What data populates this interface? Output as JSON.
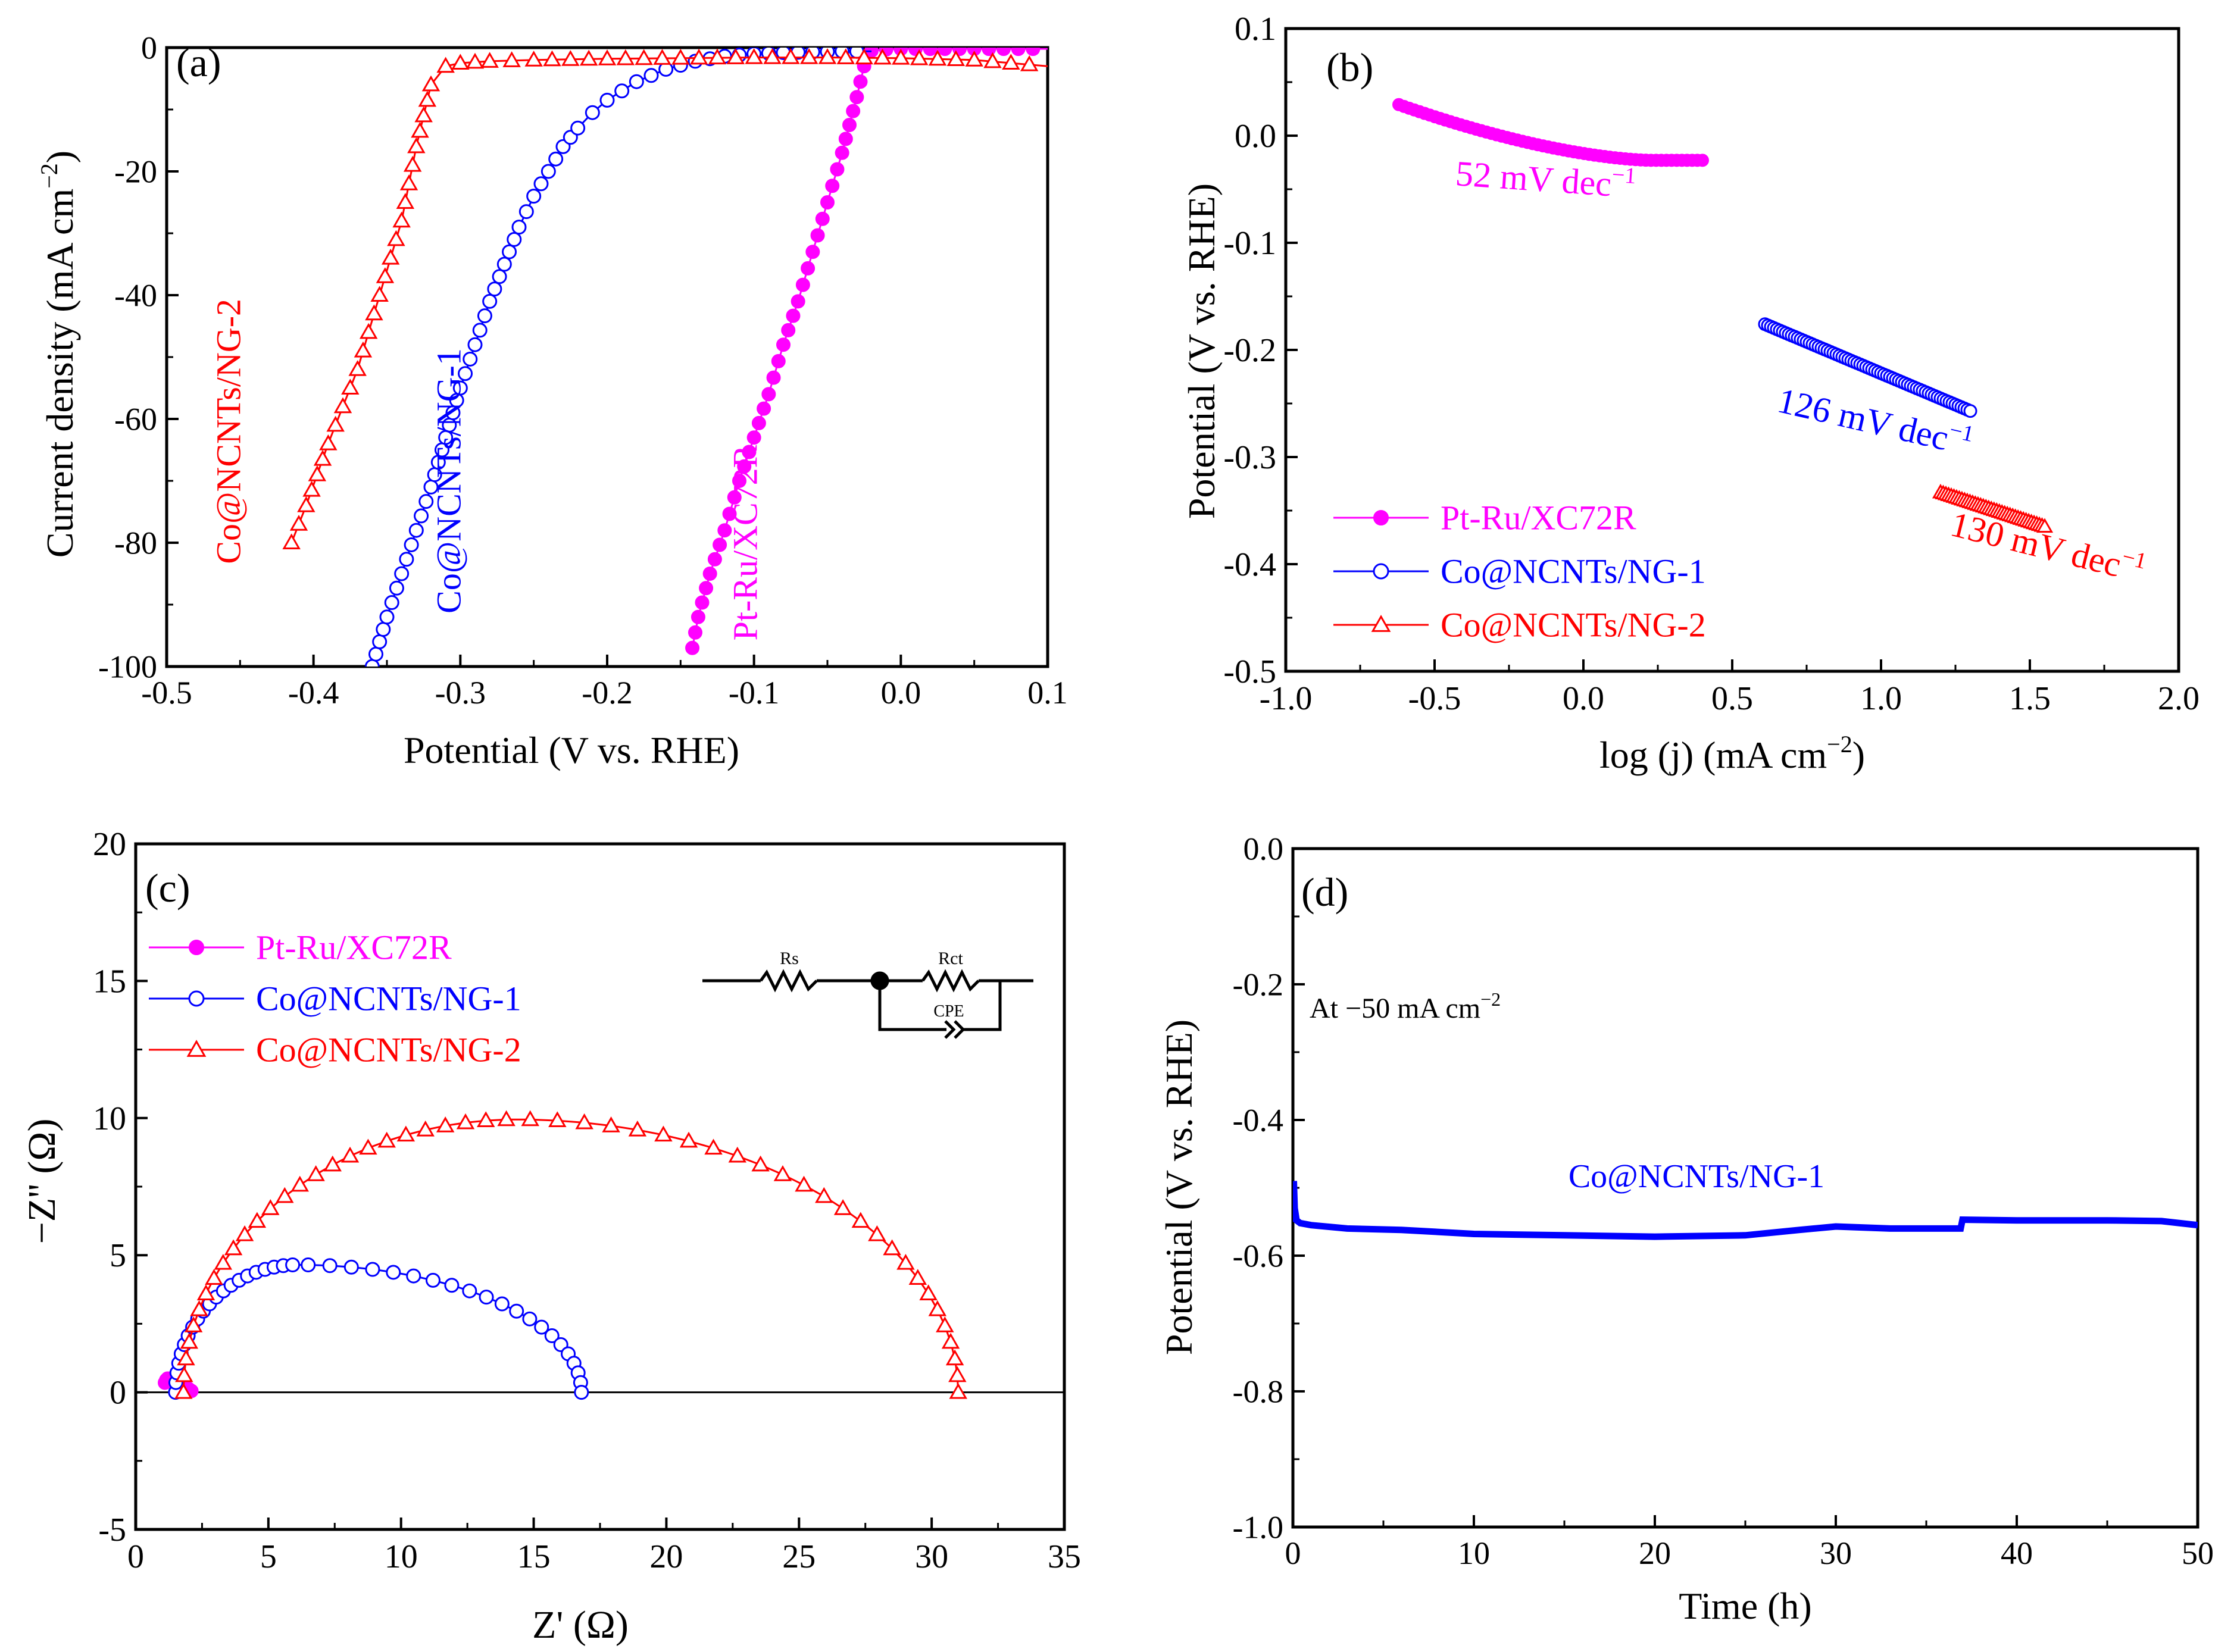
{
  "colors": {
    "axis": "#000000",
    "pt_ru": "#ff00ff",
    "ng1": "#0000ff",
    "ng2": "#ff0000",
    "zero_line": "#000000"
  },
  "chart_data": [
    {
      "panel": "(a)",
      "type": "line",
      "xlabel": "Potential  (V vs. RHE)",
      "ylabel": "Current density (mA cm",
      "ylabel_sup": "−2",
      "ylabel_end": ")",
      "xlim": [
        -0.5,
        0.1
      ],
      "ylim": [
        -100,
        0
      ],
      "xticks": [
        -0.5,
        -0.4,
        -0.3,
        -0.2,
        -0.1,
        0.0,
        0.1
      ],
      "xtick_labels": [
        "-0.5",
        "-0.4",
        "-0.3",
        "-0.2",
        "-0.1",
        "0.0",
        "0.1"
      ],
      "yticks": [
        0,
        -20,
        -40,
        -60,
        -80,
        -100
      ],
      "ytick_labels": [
        "0",
        "-20",
        "-40",
        "-60",
        "-80",
        "-100"
      ],
      "legend": "none",
      "series": [
        {
          "key": "ptru",
          "color": "#ff00ff",
          "marker": "filled-circle",
          "x": [
            -0.142,
            -0.138,
            -0.13,
            -0.12,
            -0.11,
            -0.1,
            -0.09,
            -0.08,
            -0.07,
            -0.06,
            -0.05,
            -0.04,
            -0.03,
            -0.025,
            -0.02,
            -0.01,
            0.0,
            0.02,
            0.05,
            0.08,
            0.1
          ],
          "y": [
            -97,
            -92,
            -85,
            -78,
            -70,
            -63,
            -56,
            -48,
            -41,
            -33,
            -25,
            -17,
            -8,
            -3,
            -0.5,
            -0.3,
            -0.2,
            -0.2,
            -0.2,
            -0.2,
            -0.2
          ]
        },
        {
          "key": "ng1",
          "color": "#0000ff",
          "marker": "open-circle",
          "x": [
            -0.36,
            -0.355,
            -0.35,
            -0.34,
            -0.33,
            -0.32,
            -0.31,
            -0.3,
            -0.29,
            -0.28,
            -0.27,
            -0.26,
            -0.25,
            -0.24,
            -0.23,
            -0.22,
            -0.21,
            -0.2,
            -0.18,
            -0.16,
            -0.14,
            -0.12,
            -0.1,
            -0.08,
            -0.06,
            -0.04,
            -0.02
          ],
          "y": [
            -100,
            -96,
            -92,
            -85,
            -78,
            -71,
            -63,
            -55,
            -48,
            -41,
            -35,
            -29,
            -24,
            -20,
            -16,
            -13,
            -10.5,
            -8.5,
            -5.5,
            -3.5,
            -2.2,
            -1.4,
            -1,
            -0.8,
            -0.7,
            -0.6,
            -0.6
          ]
        },
        {
          "key": "ng2",
          "color": "#ff0000",
          "marker": "open-triangle",
          "x": [
            -0.415,
            -0.405,
            -0.39,
            -0.37,
            -0.355,
            -0.34,
            -0.33,
            -0.32,
            -0.31,
            -0.3,
            -0.28,
            -0.25,
            -0.2,
            -0.15,
            -0.1,
            -0.05,
            0.0,
            0.05,
            0.1
          ],
          "y": [
            -80,
            -74,
            -64,
            -52,
            -40,
            -28,
            -16,
            -6,
            -3,
            -2.5,
            -2.2,
            -2,
            -1.8,
            -1.7,
            -1.6,
            -1.6,
            -1.7,
            -2,
            -3
          ]
        }
      ],
      "labels": [
        {
          "text": "Co@NCNTs/NG-2",
          "color": "#ff0000",
          "x": -0.45,
          "y": -62
        },
        {
          "text": "Co@NCNTs/NG-1",
          "color": "#0000ff",
          "x": -0.3,
          "y": -70
        },
        {
          "text": "Pt-Ru/XC72R",
          "color": "#ff00ff",
          "x": -0.098,
          "y": -80
        }
      ]
    },
    {
      "panel": "(b)",
      "type": "scatter",
      "xlabel": "log (j) (mA cm",
      "xlabel_sup": "−2",
      "xlabel_end": ")",
      "ylabel": "Potential (V vs. RHE)",
      "xlim": [
        -1.0,
        2.0
      ],
      "ylim": [
        -0.5,
        0.1
      ],
      "xticks": [
        -1.0,
        -0.5,
        0.0,
        0.5,
        1.0,
        1.5,
        2.0
      ],
      "xtick_labels": [
        "-1.0",
        "-0.5",
        "0.0",
        "0.5",
        "1.0",
        "1.5",
        "2.0"
      ],
      "yticks": [
        0.1,
        0.0,
        -0.1,
        -0.2,
        -0.3,
        -0.4,
        -0.5
      ],
      "ytick_labels": [
        "0.1",
        "0.0",
        "-0.1",
        "-0.2",
        "-0.3",
        "-0.4",
        "-0.5"
      ],
      "legend": "bottom-left",
      "legend_entries": [
        {
          "text": "Pt-Ru/XC72R",
          "color": "#ff00ff",
          "marker": "filled-circle"
        },
        {
          "text": "Co@NCNTs/NG-1",
          "color": "#0000ff",
          "marker": "open-circle"
        },
        {
          "text": "Co@NCNTs/NG-2",
          "color": "#ff0000",
          "marker": "open-triangle"
        }
      ],
      "series": [
        {
          "key": "ptru",
          "color": "#ff00ff",
          "marker": "filled-circle",
          "x_range": [
            -0.62,
            0.4
          ],
          "points": 60,
          "curve": "ptru",
          "y_start": 0.029,
          "y_end": -0.023
        },
        {
          "key": "ng1",
          "color": "#0000ff",
          "marker": "open-circle",
          "x_range": [
            0.61,
            1.3
          ],
          "points": 70,
          "curve": "linear",
          "y_start": -0.176,
          "y_end": -0.257
        },
        {
          "key": "ng2",
          "color": "#ff0000",
          "marker": "open-triangle",
          "x_range": [
            1.2,
            1.55
          ],
          "points": 40,
          "curve": "linear",
          "y_start": -0.333,
          "y_end": -0.365
        }
      ],
      "annotations": [
        {
          "text": "52 mV dec",
          "sup": "−1",
          "color": "#ff00ff",
          "x": -0.13,
          "y": -0.052,
          "rotate": 4
        },
        {
          "text": "126 mV dec",
          "sup": "−1",
          "color": "#0000ff",
          "x": 0.97,
          "y": -0.278,
          "rotate": 13
        },
        {
          "text": "130 mV dec",
          "sup": "−1",
          "color": "#ff0000",
          "x": 1.55,
          "y": -0.395,
          "rotate": 14
        }
      ]
    },
    {
      "panel": "(c)",
      "type": "scatter",
      "xlabel": "Z' (Ω)",
      "ylabel": "−Z'' (Ω)",
      "xlim": [
        0,
        35
      ],
      "ylim": [
        -5,
        20
      ],
      "xticks": [
        0,
        5,
        10,
        15,
        20,
        25,
        30,
        35
      ],
      "xtick_labels": [
        "0",
        "5",
        "10",
        "15",
        "20",
        "25",
        "30",
        "35"
      ],
      "yticks": [
        -5,
        0,
        5,
        10,
        15,
        20
      ],
      "ytick_labels": [
        "-5",
        "0",
        "5",
        "10",
        "15",
        "20"
      ],
      "zero_line": true,
      "legend": "top-left",
      "legend_entries": [
        {
          "text": "Pt-Ru/XC72R",
          "color": "#ff00ff",
          "marker": "filled-circle"
        },
        {
          "text": "Co@NCNTs/NG-1",
          "color": "#0000ff",
          "marker": "open-circle"
        },
        {
          "text": "Co@NCNTs/NG-2",
          "color": "#ff0000",
          "marker": "open-triangle"
        }
      ],
      "circuit": {
        "rs": "Rs",
        "rct": "Rct",
        "cpe": "CPE"
      },
      "series": [
        {
          "key": "ptru",
          "color": "#ff00ff",
          "marker": "filled-circle",
          "x": [
            1.1,
            1.15,
            1.2,
            1.3,
            1.4,
            1.5,
            1.6,
            1.7,
            1.8,
            1.9,
            2.0,
            2.1
          ],
          "y": [
            0.35,
            0.45,
            0.5,
            0.5,
            0.45,
            0.4,
            0.35,
            0.3,
            0.25,
            0.2,
            0.12,
            0.05
          ]
        },
        {
          "key": "ng1",
          "color": "#0000ff",
          "marker": "open-circle",
          "arc": {
            "x0": 1.5,
            "x1": 16.8,
            "peak": 4.65,
            "skew": 0.3,
            "n": 42
          }
        },
        {
          "key": "ng2",
          "color": "#ff0000",
          "marker": "open-triangle",
          "arc": {
            "x0": 1.8,
            "x1": 31.0,
            "peak": 9.95,
            "skew": 0.43,
            "n": 52
          }
        }
      ]
    },
    {
      "panel": "(d)",
      "type": "line",
      "xlabel": "Time (h)",
      "ylabel": "Potential (V vs. RHE)",
      "xlim": [
        0,
        50
      ],
      "ylim": [
        -1.0,
        0.0
      ],
      "xticks": [
        0,
        10,
        20,
        30,
        40,
        50
      ],
      "xtick_labels": [
        "0",
        "10",
        "20",
        "30",
        "40",
        "50"
      ],
      "yticks": [
        0.0,
        -0.2,
        -0.4,
        -0.6,
        -0.8,
        -1.0
      ],
      "ytick_labels": [
        "0.0",
        "-0.2",
        "-0.4",
        "-0.6",
        "-0.8",
        "-1.0"
      ],
      "legend": "none",
      "condition_text": "At −50 mA cm",
      "condition_sup": "−2",
      "series_label": "Co@NCNTs/NG-1",
      "series": [
        {
          "key": "ng1",
          "color": "#0000ff",
          "x": [
            0,
            0.05,
            0.1,
            0.2,
            0.4,
            1,
            3,
            6,
            10,
            15,
            20,
            25,
            28,
            30,
            33,
            36.9,
            37,
            40,
            45,
            48,
            50
          ],
          "y": [
            -0.55,
            -0.49,
            -0.53,
            -0.548,
            -0.552,
            -0.555,
            -0.56,
            -0.562,
            -0.568,
            -0.57,
            -0.572,
            -0.57,
            -0.562,
            -0.557,
            -0.56,
            -0.56,
            -0.547,
            -0.548,
            -0.548,
            -0.549,
            -0.555
          ]
        }
      ]
    }
  ]
}
